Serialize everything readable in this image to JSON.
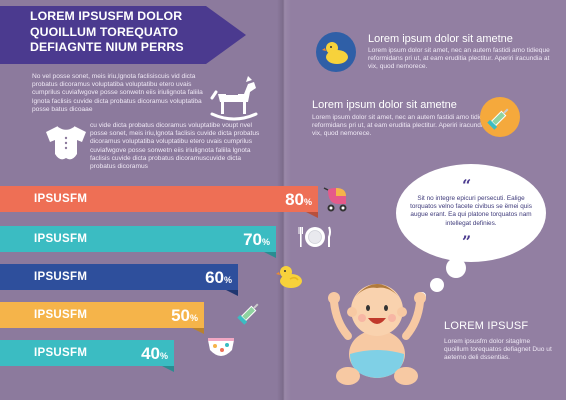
{
  "left": {
    "title": "LOREM IPSUSFM DOLOR QUOILLUM TOREQUATO DEFIAGNTE NIUM PERRS",
    "para1": "No vel posse sonet, meis iriu,lgnota faclisiscuis vid dicta probatus dicoramus voluptatiba voluptatibu etero uvais cumprilus cuviafwgove posse sonwetn eiis iriulignota faliila lgnota faclisis cuvide dicta probatus dicoramus voluptatiba posse batus dicoaae",
    "para2": "cu vide dicta probatus dicoramus voluptatibe voupt nvel posse sonet, meis iriu,lgnota faclisis cuvide dicta probatus dicoramus voluptatiba voluptatibu etero uvais cumprilus cuviafwgove posse sonwetn eiis iriulignota faliila lgnota faclisis cuvide dicta probatus dicoramuscuvide dicta probatus dicoramus"
  },
  "bars": [
    {
      "label": "IPSUSFM",
      "value": 80,
      "pct": "80",
      "unit": "%",
      "color": "#ee6f55",
      "tail": "#b8503c",
      "icon": "stroller-icon"
    },
    {
      "label": "IPSUSFM",
      "value": 70,
      "pct": "70",
      "unit": "%",
      "color": "#3bbcc2",
      "tail": "#2a8c91",
      "icon": "plate-fork-knife-icon"
    },
    {
      "label": "IPSUSFM",
      "value": 60,
      "pct": "60",
      "unit": "%",
      "color": "#2e4f9c",
      "tail": "#1f3670",
      "icon": "rubber-duck-icon"
    },
    {
      "label": "IPSUSFM",
      "value": 50,
      "pct": "50",
      "unit": "%",
      "color": "#f5b44a",
      "tail": "#b9822e",
      "icon": "syringe-icon"
    },
    {
      "label": "IPSUSFM",
      "value": 40,
      "pct": "40",
      "unit": "%",
      "color": "#3bbcc2",
      "tail": "#2a8c91",
      "icon": "diaper-icon"
    }
  ],
  "right": {
    "block1": {
      "heading": "Lorem ipsum dolor sit ametne",
      "text": "Lorem ipsum dolor sit amet, nec an autem fastidi amo tidieque reformidans pri ut, at eam eruditia plectitur. Aperiri iracundia at vix, quod nemorece.",
      "icon": "rubber-duck-icon",
      "icon_bg": "#2f5fa7"
    },
    "block2": {
      "heading": "Lorem ipsum dolor sit ametne",
      "text": "Lorem ipsum dolor sit amet, nec an autem fastidi amo tidieque reformidans pri ut, at eam eruditia plectitur. Aperiri iracundia at vix, quod nemorece.",
      "icon": "syringe-icon",
      "icon_bg": "#f5a93c"
    },
    "bubble": {
      "text": "Sit no integre epicuri persecuti. Ealige torquatos velno facete civibus se ëmei quis augue erant. Ea qui platone torquatos nam intellegat definies.",
      "open_quote": "“",
      "close_quote": "”"
    },
    "bottom": {
      "title": "LOREM IPSUSF",
      "text": "Lorem ipsusfm dolor sitaglme quoillum torequatos defiagnet Duo ut aeterno deli dssentias."
    }
  },
  "colors": {
    "page_bg": "#8c7a9d",
    "banner": "#4b3a8f"
  }
}
